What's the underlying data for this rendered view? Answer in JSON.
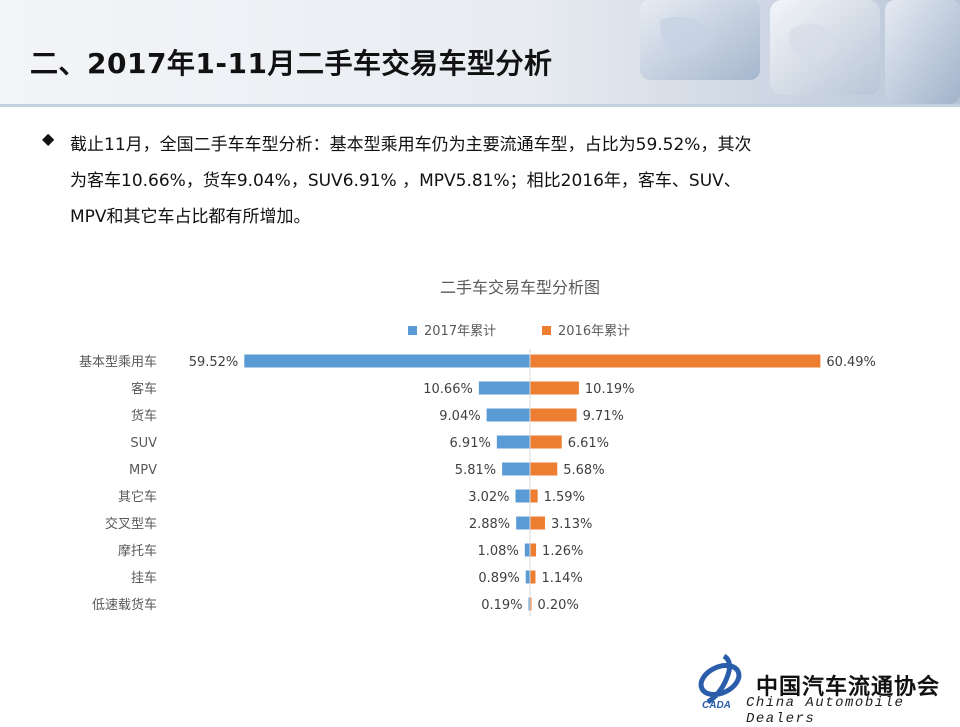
{
  "slide": {
    "title": "二、2017年1-11月二手车交易车型分析",
    "bullet_symbol": "◆",
    "summary_lines": [
      "截止11月，全国二手车车型分析：基本型乘用车仍为主要流通车型，占比为59.52%，其次",
      "为客车10.66%，货车9.04%，SUV6.91% ，MPV5.81%；相比2016年，客车、SUV、",
      "MPV和其它车占比都有所增加。"
    ]
  },
  "chart_data": {
    "type": "bar",
    "orientation": "horizontal-butterfly",
    "title": "二手车交易车型分析图",
    "categories": [
      "基本型乘用车",
      "客车",
      "货车",
      "SUV",
      "MPV",
      "其它车",
      "交叉型车",
      "摩托车",
      "挂车",
      "低速载货车"
    ],
    "series": [
      {
        "name": "2017年累计",
        "color": "#5b9bd5",
        "values": [
          59.52,
          10.66,
          9.04,
          6.91,
          5.81,
          3.02,
          2.88,
          1.08,
          0.89,
          0.19
        ],
        "labels": [
          "59.52%",
          "10.66%",
          "9.04%",
          "6.91%",
          "5.81%",
          "3.02%",
          "2.88%",
          "1.08%",
          "0.89%",
          "0.19%"
        ]
      },
      {
        "name": "2016年累计",
        "color": "#ed7d31",
        "values": [
          60.49,
          10.19,
          9.71,
          6.61,
          5.68,
          1.59,
          3.13,
          1.26,
          1.14,
          0.2
        ],
        "labels": [
          "60.49%",
          "10.19%",
          "9.71%",
          "6.61%",
          "5.68%",
          "1.59%",
          "3.13%",
          "1.26%",
          "1.14%",
          "0.20%"
        ]
      }
    ],
    "legend": "top",
    "grid": false
  },
  "footer": {
    "org_cn": "中国汽车流通协会",
    "org_en": "China  Automobile Dealers",
    "logo_text": "CADA"
  },
  "colors": {
    "accent": "#5b7fb0",
    "series_2017": "#5b9bd5",
    "series_2016": "#ed7d31"
  }
}
